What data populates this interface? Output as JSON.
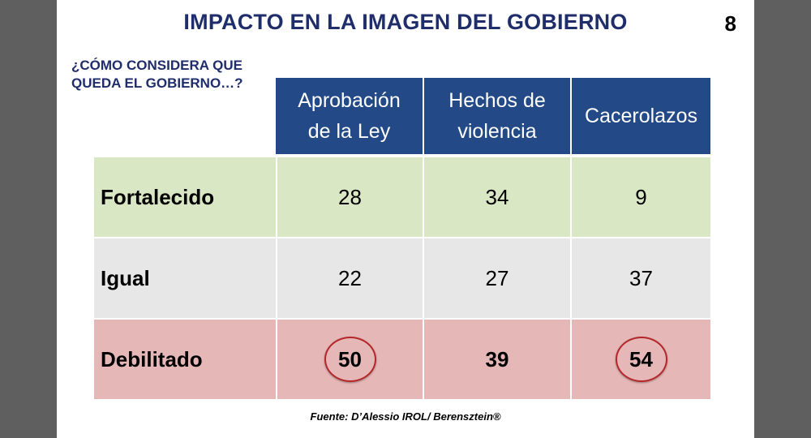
{
  "slide": {
    "title": "IMPACTO EN LA IMAGEN DEL GOBIERNO",
    "page_number": "8",
    "question": "¿CÓMO CONSIDERA QUE QUEDA EL GOBIERNO…?",
    "source": "Fuente: D’Alessio IROL/ Berensztein®"
  },
  "table": {
    "header_color": "#234a87",
    "columns": [
      {
        "line1": "Aprobación",
        "line2": "de la Ley"
      },
      {
        "line1": "Hechos de",
        "line2": "violencia"
      },
      {
        "line1": "Cacerolazos",
        "line2": ""
      }
    ],
    "rows": [
      {
        "label": "Fortalecido",
        "color": "#dae7c4",
        "values": [
          "28",
          "34",
          "9"
        ],
        "highlighted": [
          false,
          false,
          false
        ],
        "bold": false
      },
      {
        "label": "Igual",
        "color": "#e7e7e7",
        "values": [
          "22",
          "27",
          "37"
        ],
        "highlighted": [
          false,
          false,
          false
        ],
        "bold": false
      },
      {
        "label": "Debilitado",
        "color": "#e6b7b7",
        "values": [
          "50",
          "39",
          "54"
        ],
        "highlighted": [
          true,
          false,
          true
        ],
        "bold": true
      }
    ],
    "highlight_color": "#b3262a"
  }
}
